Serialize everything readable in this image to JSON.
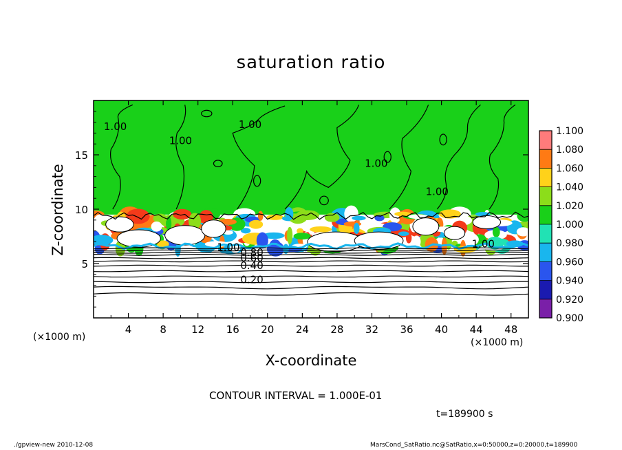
{
  "chart_data": {
    "type": "heatmap",
    "title": "saturation ratio",
    "xlabel": "X-coordinate",
    "ylabel": "Z-coordinate",
    "x_unit": "(×1000 m)",
    "xlim": [
      0,
      50
    ],
    "ylim": [
      0,
      20
    ],
    "x_ticks": [
      4,
      8,
      12,
      16,
      20,
      24,
      28,
      32,
      36,
      40,
      44,
      48
    ],
    "y_ticks": [
      5,
      10,
      15
    ],
    "colorbar": {
      "levels": [
        0.9,
        0.92,
        0.94,
        0.96,
        0.98,
        1.0,
        1.02,
        1.04,
        1.06,
        1.08,
        1.1
      ],
      "labels": [
        "0.900",
        "0.920",
        "0.940",
        "0.960",
        "0.980",
        "1.000",
        "1.020",
        "1.040",
        "1.060",
        "1.080",
        "1.100"
      ],
      "colors": [
        "#7a1fa8",
        "#1a1ab0",
        "#2a55ee",
        "#19b6ee",
        "#21e2b4",
        "#19d019",
        "#8cdd1a",
        "#ffd21a",
        "#ff7a14",
        "#f43a1a",
        "#ff7b7b"
      ]
    },
    "contour_labels": [
      {
        "text": "0.20",
        "x": 18.2,
        "y": 3.5
      },
      {
        "text": "0.40",
        "x": 18.2,
        "y": 4.8
      },
      {
        "text": "0.60",
        "x": 18.2,
        "y": 5.5
      },
      {
        "text": "0.80",
        "x": 18.2,
        "y": 6.0
      },
      {
        "text": "1.00",
        "x": 15.5,
        "y": 6.5
      },
      {
        "text": "1.00",
        "x": 44.8,
        "y": 6.8
      },
      {
        "text": "1.00",
        "x": 18.0,
        "y": 17.8
      },
      {
        "text": "1.00",
        "x": 32.5,
        "y": 14.2
      },
      {
        "text": "1.00",
        "x": 39.5,
        "y": 11.6
      },
      {
        "text": "1.00",
        "x": 2.5,
        "y": 17.6
      },
      {
        "text": "1.00",
        "x": 10.0,
        "y": 16.3
      }
    ]
  },
  "annotations": {
    "x_unit_left": "(×1000 m)",
    "x_unit_right": "(×1000 m)",
    "contour_interval": "CONTOUR INTERVAL = 1.000E-01",
    "time": "t=189900 s"
  },
  "footer": {
    "left": "./gpview-new   2010-12-08",
    "right": "MarsCond_SatRatio.nc@SatRatio,x=0:50000,z=0:20000,t=189900"
  }
}
